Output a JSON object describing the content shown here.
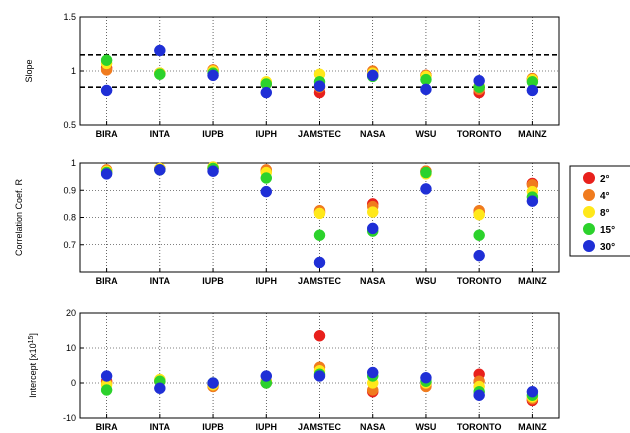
{
  "chart_data": [
    {
      "type": "scatter",
      "ylabel": "Slope",
      "ylim": [
        0.5,
        1.5
      ],
      "yticks": [
        "0.5",
        "1",
        "1.5"
      ],
      "categories": [
        "BIRA",
        "INTA",
        "IUPB",
        "IUPH",
        "JAMSTEC",
        "NASA",
        "WSU",
        "TORONTO",
        "MAINZ"
      ],
      "reference_lines": [
        1.15,
        0.85
      ],
      "series": [
        {
          "name": "2°",
          "color": "#e8201c",
          "values": [
            1.03,
            0.98,
            1.01,
            0.88,
            0.8,
            0.99,
            0.96,
            0.8,
            0.92
          ]
        },
        {
          "name": "4°",
          "color": "#f07b1e",
          "values": [
            1.01,
            0.98,
            1.01,
            0.89,
            0.85,
            1.0,
            0.96,
            0.83,
            0.93
          ]
        },
        {
          "name": "8°",
          "color": "#ffe81a",
          "values": [
            1.07,
            0.98,
            1.0,
            0.9,
            0.97,
            0.98,
            0.95,
            0.86,
            0.92
          ]
        },
        {
          "name": "15°",
          "color": "#2cd22c",
          "values": [
            1.1,
            0.97,
            0.98,
            0.88,
            0.9,
            0.95,
            0.92,
            0.85,
            0.9
          ]
        },
        {
          "name": "30°",
          "color": "#1f2fd6",
          "values": [
            0.82,
            1.19,
            0.96,
            0.8,
            0.86,
            0.96,
            0.83,
            0.91,
            0.82
          ]
        }
      ]
    },
    {
      "type": "scatter",
      "ylabel": "Correlation Coef. R",
      "ylim": [
        0.6,
        1.0
      ],
      "yticks": [
        "0.7",
        "0.8",
        "0.9",
        "1"
      ],
      "categories": [
        "BIRA",
        "INTA",
        "IUPB",
        "IUPH",
        "JAMSTEC",
        "NASA",
        "WSU",
        "TORONTO",
        "MAINZ"
      ],
      "series": [
        {
          "name": "2°",
          "color": "#e8201c",
          "values": [
            0.97,
            0.98,
            0.98,
            0.97,
            0.82,
            0.85,
            0.97,
            0.82,
            0.925
          ]
        },
        {
          "name": "4°",
          "color": "#f07b1e",
          "values": [
            0.975,
            0.98,
            0.985,
            0.975,
            0.825,
            0.84,
            0.97,
            0.825,
            0.92
          ]
        },
        {
          "name": "8°",
          "color": "#ffe81a",
          "values": [
            0.97,
            0.98,
            0.985,
            0.965,
            0.815,
            0.82,
            0.96,
            0.81,
            0.895
          ]
        },
        {
          "name": "15°",
          "color": "#2cd22c",
          "values": [
            0.965,
            0.975,
            0.98,
            0.945,
            0.735,
            0.75,
            0.965,
            0.735,
            0.875
          ]
        },
        {
          "name": "30°",
          "color": "#1f2fd6",
          "values": [
            0.96,
            0.975,
            0.97,
            0.895,
            0.635,
            0.76,
            0.905,
            0.66,
            0.86
          ]
        }
      ]
    },
    {
      "type": "scatter",
      "ylabel": "Intercept [x10",
      "ylabel_sup": "15",
      "ylabel_end": "]",
      "ylim": [
        -10,
        20
      ],
      "yticks": [
        "-10",
        "0",
        "10",
        "20"
      ],
      "categories": [
        "BIRA",
        "INTA",
        "IUPB",
        "IUPH",
        "JAMSTEC",
        "NASA",
        "WSU",
        "TORONTO",
        "MAINZ"
      ],
      "series": [
        {
          "name": "2°",
          "color": "#e8201c",
          "values": [
            0.5,
            0.5,
            -0.5,
            0.5,
            13.5,
            -2.5,
            -0.5,
            2.5,
            -5.0
          ]
        },
        {
          "name": "4°",
          "color": "#f07b1e",
          "values": [
            0.0,
            0.5,
            -1.0,
            0.0,
            4.5,
            -2.0,
            -1.0,
            0.5,
            -4.5
          ]
        },
        {
          "name": "8°",
          "color": "#ffe81a",
          "values": [
            -0.5,
            1.0,
            -0.5,
            0.5,
            3.5,
            0.0,
            0.0,
            -1.0,
            -4.0
          ]
        },
        {
          "name": "15°",
          "color": "#2cd22c",
          "values": [
            -2.0,
            0.5,
            0.0,
            0.0,
            2.5,
            2.0,
            0.5,
            -2.5,
            -3.5
          ]
        },
        {
          "name": "30°",
          "color": "#1f2fd6",
          "values": [
            2.0,
            -1.5,
            0.0,
            2.0,
            2.0,
            3.0,
            1.5,
            -3.5,
            -2.5
          ]
        }
      ]
    }
  ],
  "legend": {
    "items": [
      {
        "label": "2°",
        "color": "#e8201c"
      },
      {
        "label": "4°",
        "color": "#f07b1e"
      },
      {
        "label": "8°",
        "color": "#ffe81a"
      },
      {
        "label": "15°",
        "color": "#2cd22c"
      },
      {
        "label": "30°",
        "color": "#1f2fd6"
      }
    ]
  }
}
